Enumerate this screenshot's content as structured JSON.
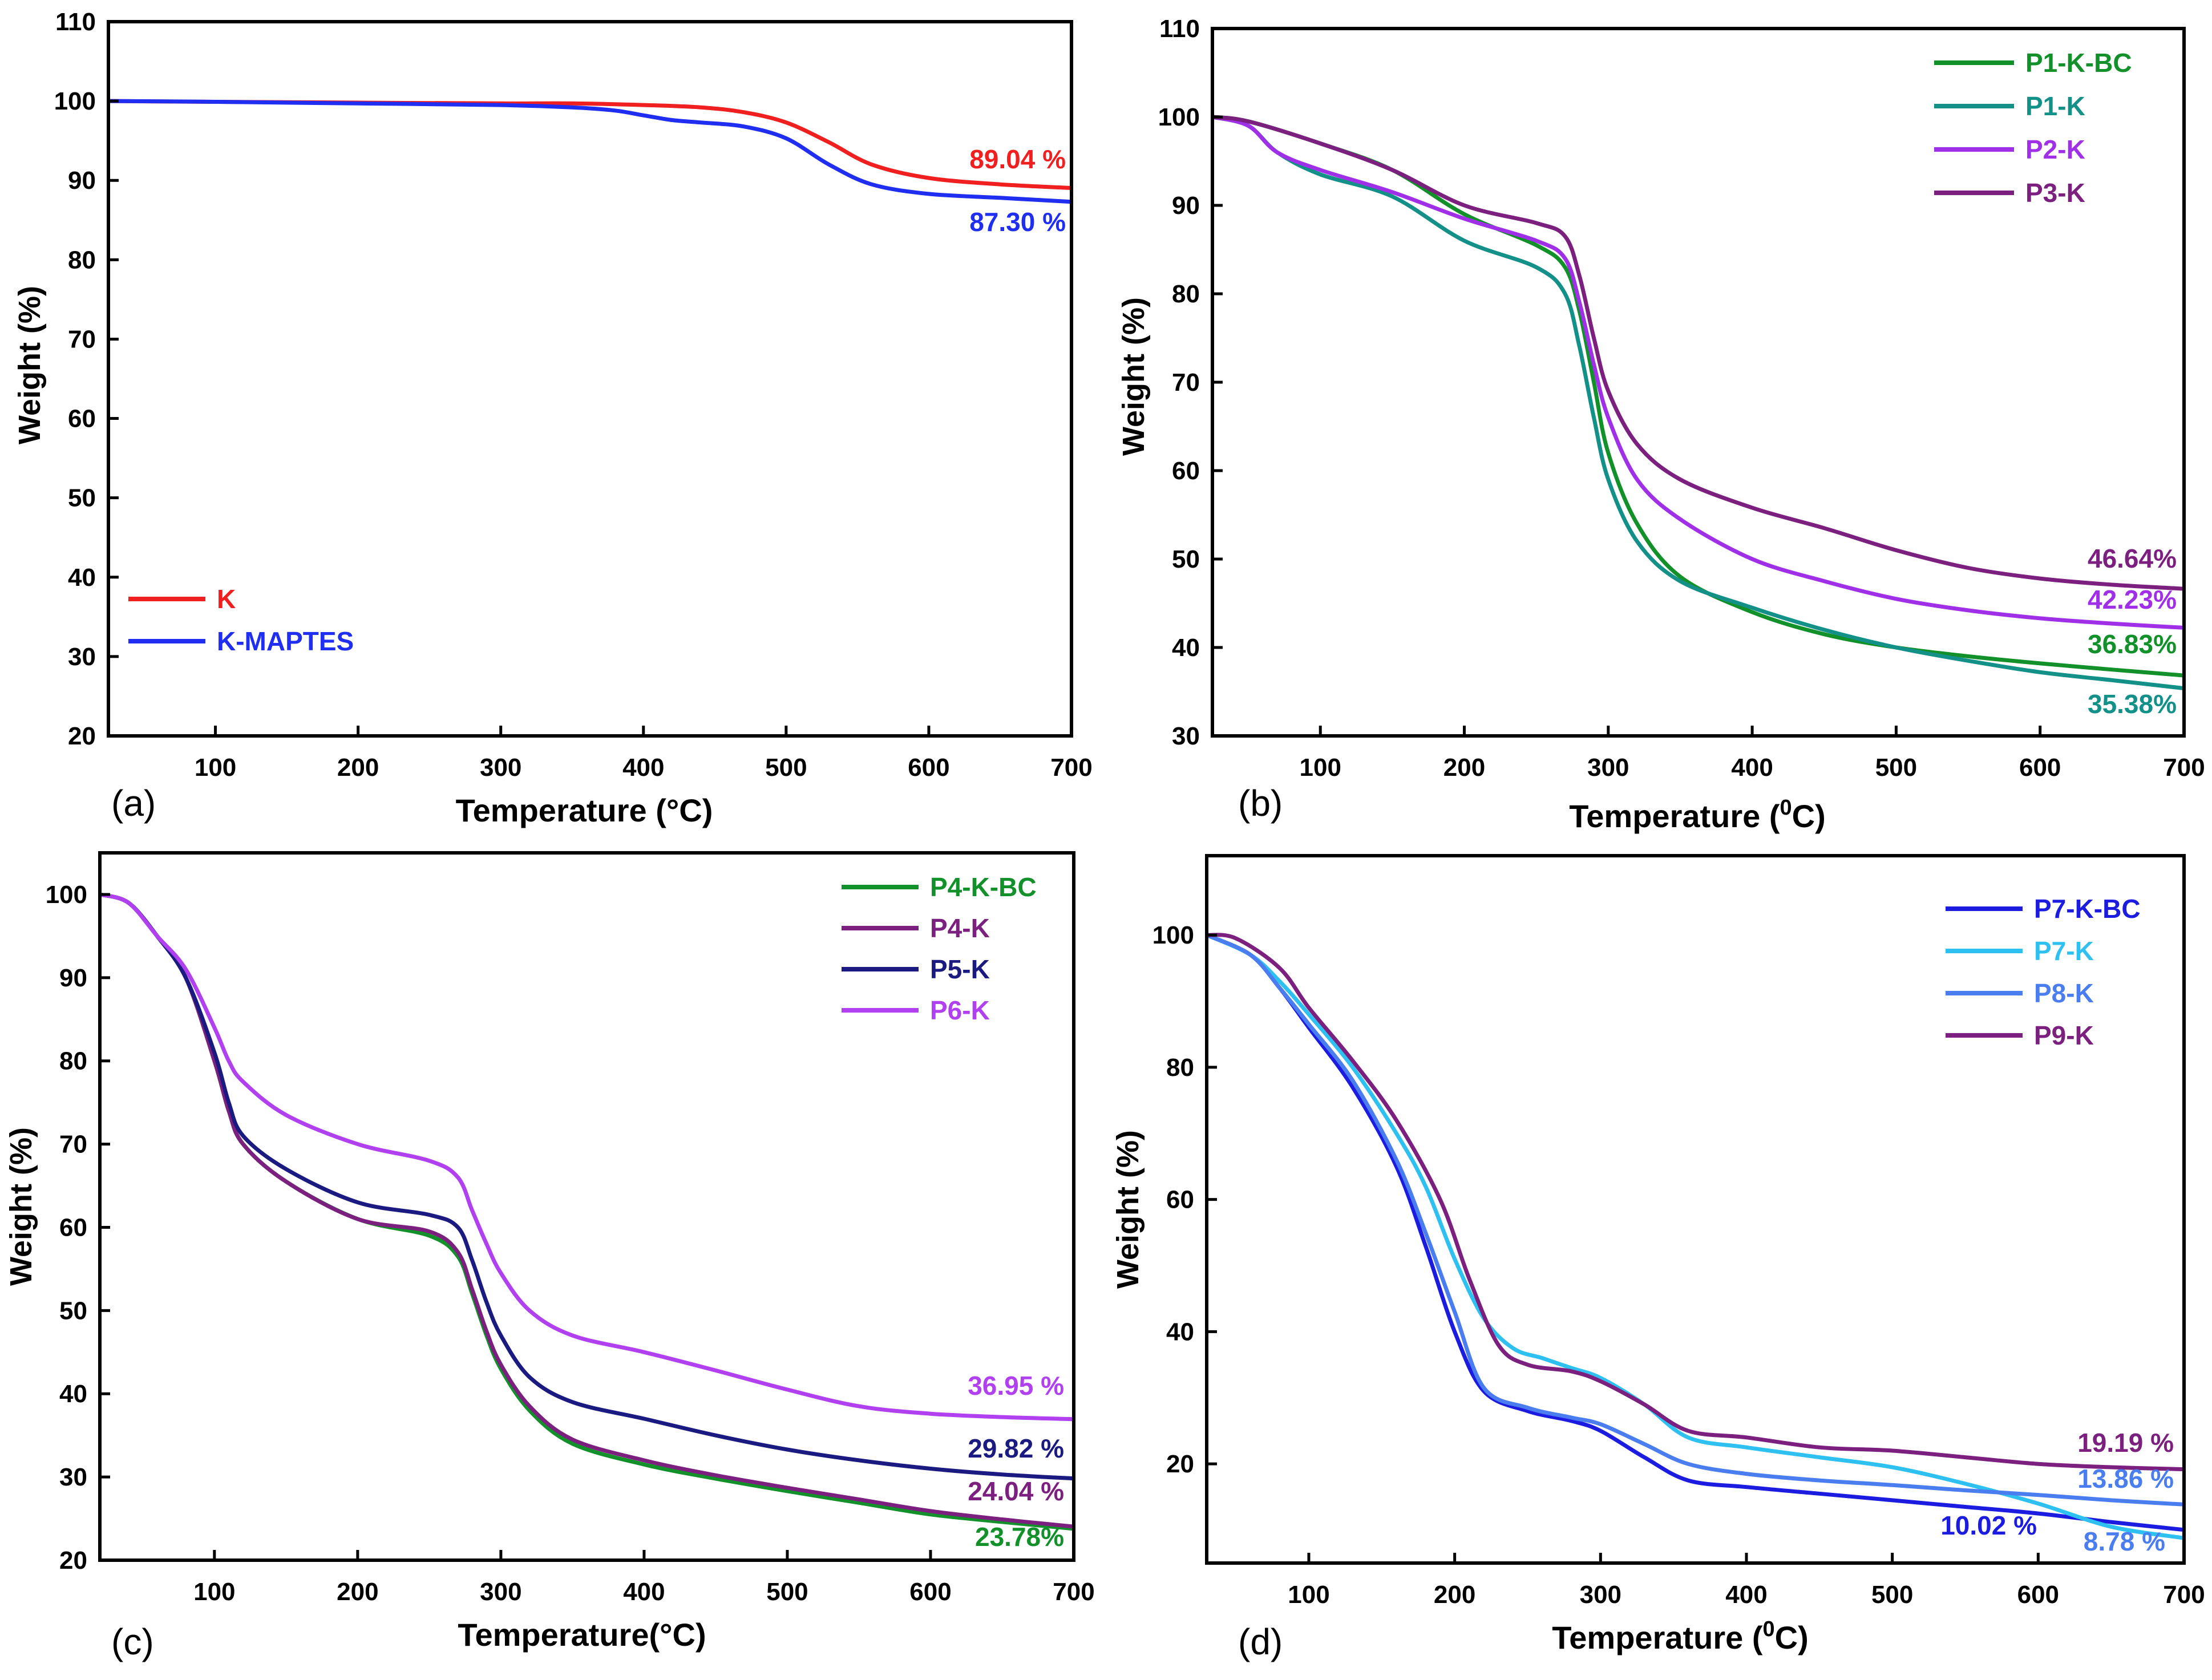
{
  "chart_data": [
    {
      "type": "line",
      "panel_label": "(a)",
      "xlabel": "Temperature (°C)",
      "ylabel": "Weight (%)",
      "xlim": [
        25,
        700
      ],
      "ylim": [
        20,
        110
      ],
      "xticks": [
        100,
        200,
        300,
        400,
        500,
        600,
        700
      ],
      "yticks": [
        20,
        30,
        40,
        50,
        60,
        70,
        80,
        90,
        100,
        110
      ],
      "legend_position": "lower-left",
      "series": [
        {
          "name": "K",
          "color": "#f02020",
          "x": [
            25,
            100,
            200,
            300,
            350,
            400,
            440,
            470,
            500,
            530,
            560,
            600,
            650,
            700
          ],
          "y": [
            100,
            99.9,
            99.8,
            99.7,
            99.7,
            99.5,
            99.2,
            98.6,
            97.3,
            94.8,
            92.0,
            90.3,
            89.5,
            89.04
          ]
        },
        {
          "name": "K-MAPTES",
          "color": "#1f2ef0",
          "x": [
            25,
            100,
            200,
            300,
            350,
            380,
            400,
            420,
            440,
            470,
            500,
            530,
            560,
            600,
            650,
            700
          ],
          "y": [
            100,
            99.9,
            99.7,
            99.5,
            99.2,
            98.8,
            98.2,
            97.6,
            97.3,
            96.8,
            95.3,
            92.0,
            89.5,
            88.3,
            87.8,
            87.3
          ]
        }
      ],
      "end_labels": [
        {
          "series": "K",
          "text": "89.04 %",
          "color": "#f02020"
        },
        {
          "series": "K-MAPTES",
          "text": "87.30 %",
          "color": "#1f2ef0"
        }
      ]
    },
    {
      "type": "line",
      "panel_label": "(b)",
      "xlabel": "Temperature (",
      "xlabel_sup": "0",
      "xlabel_suffix": "C)",
      "ylabel": "Weight (%)",
      "xlim": [
        25,
        700
      ],
      "ylim": [
        30,
        110
      ],
      "xticks": [
        100,
        200,
        300,
        400,
        500,
        600,
        700
      ],
      "yticks": [
        30,
        40,
        50,
        60,
        70,
        80,
        90,
        100,
        110
      ],
      "legend_position": "top-right",
      "series": [
        {
          "name": "P1-K-BC",
          "color": "#12902a",
          "x": [
            25,
            50,
            100,
            150,
            200,
            250,
            270,
            280,
            290,
            300,
            320,
            350,
            400,
            450,
            500,
            550,
            600,
            650,
            700
          ],
          "y": [
            100,
            99.5,
            97,
            94,
            89,
            85.5,
            83,
            78,
            70,
            62,
            54,
            48,
            44,
            41.5,
            40,
            39,
            38.2,
            37.5,
            36.83
          ]
        },
        {
          "name": "P1-K",
          "color": "#139088",
          "x": [
            25,
            50,
            70,
            100,
            150,
            200,
            250,
            270,
            280,
            290,
            300,
            320,
            350,
            400,
            450,
            500,
            550,
            600,
            650,
            700
          ],
          "y": [
            100,
            99,
            96,
            93.5,
            91,
            86,
            83,
            80,
            74,
            66,
            59,
            52,
            47.5,
            44.5,
            42,
            40,
            38.5,
            37.2,
            36.3,
            35.38
          ]
        },
        {
          "name": "P2-K",
          "color": "#a030e8",
          "x": [
            25,
            50,
            70,
            100,
            150,
            200,
            250,
            270,
            280,
            290,
            300,
            320,
            350,
            400,
            450,
            500,
            550,
            600,
            650,
            700
          ],
          "y": [
            100,
            99,
            96,
            94,
            91.5,
            88.5,
            86,
            84,
            79,
            72,
            66,
            59,
            54.5,
            50,
            47.5,
            45.5,
            44.2,
            43.3,
            42.7,
            42.23
          ]
        },
        {
          "name": "P3-K",
          "color": "#7c2080",
          "x": [
            25,
            50,
            100,
            150,
            200,
            250,
            270,
            280,
            290,
            300,
            320,
            350,
            400,
            450,
            500,
            550,
            600,
            650,
            700
          ],
          "y": [
            100,
            99.5,
            97,
            94,
            90,
            88,
            86.5,
            82,
            75,
            69,
            63,
            59,
            55.8,
            53.5,
            51,
            49,
            47.8,
            47.1,
            46.64
          ]
        }
      ],
      "end_labels": [
        {
          "series": "P3-K",
          "text": "46.64%",
          "color": "#7c2080"
        },
        {
          "series": "P2-K",
          "text": "42.23%",
          "color": "#a030e8"
        },
        {
          "series": "P1-K-BC",
          "text": "36.83%",
          "color": "#12902a"
        },
        {
          "series": "P1-K",
          "text": "35.38%",
          "color": "#139088"
        }
      ]
    },
    {
      "type": "line",
      "panel_label": "(c)",
      "xlabel": "Temperature(°C)",
      "ylabel": "Weight (%)",
      "xlim": [
        20,
        700
      ],
      "ylim": [
        20,
        105
      ],
      "xticks": [
        100,
        200,
        300,
        400,
        500,
        600,
        700
      ],
      "yticks": [
        20,
        30,
        40,
        50,
        60,
        70,
        80,
        90,
        100
      ],
      "legend_position": "top-right",
      "series": [
        {
          "name": "P4-K-BC",
          "color": "#12902a",
          "x": [
            20,
            40,
            60,
            80,
            100,
            110,
            120,
            150,
            200,
            250,
            270,
            280,
            290,
            300,
            320,
            350,
            400,
            450,
            500,
            550,
            600,
            650,
            700
          ],
          "y": [
            100,
            99,
            95,
            90,
            80,
            74,
            70,
            65.5,
            61,
            59,
            56.5,
            52,
            47,
            43,
            38,
            34,
            31.5,
            29.8,
            28.3,
            26.9,
            25.5,
            24.6,
            23.78
          ]
        },
        {
          "name": "P4-K",
          "color": "#7c2080",
          "x": [
            20,
            40,
            60,
            80,
            100,
            110,
            120,
            150,
            200,
            250,
            270,
            280,
            290,
            300,
            320,
            350,
            400,
            450,
            500,
            550,
            600,
            650,
            700
          ],
          "y": [
            100,
            99,
            95,
            90,
            80,
            74,
            70,
            65.5,
            61,
            59.5,
            57,
            52.5,
            47.5,
            43.5,
            38.5,
            34.5,
            32,
            30.2,
            28.7,
            27.3,
            25.9,
            24.9,
            24.04
          ]
        },
        {
          "name": "P5-K",
          "color": "#1a1a80",
          "x": [
            20,
            40,
            60,
            80,
            100,
            110,
            120,
            150,
            200,
            250,
            270,
            280,
            290,
            300,
            320,
            350,
            400,
            450,
            500,
            550,
            600,
            650,
            700
          ],
          "y": [
            100,
            99,
            95,
            90,
            81,
            75,
            71,
            67,
            63,
            61.5,
            60,
            56,
            51,
            47,
            42,
            39,
            37,
            35,
            33.3,
            32,
            31,
            30.3,
            29.82
          ]
        },
        {
          "name": "P6-K",
          "color": "#b040f0",
          "x": [
            20,
            40,
            60,
            80,
            100,
            110,
            120,
            150,
            200,
            250,
            270,
            280,
            290,
            300,
            320,
            350,
            400,
            450,
            500,
            550,
            600,
            650,
            700
          ],
          "y": [
            100,
            99,
            95,
            91,
            84,
            80,
            77.5,
            73.5,
            70,
            68,
            66,
            62,
            58,
            54.5,
            50,
            47,
            45,
            42.8,
            40.5,
            38.5,
            37.6,
            37.2,
            36.95
          ]
        }
      ],
      "end_labels": [
        {
          "series": "P6-K",
          "text": "36.95 %",
          "color": "#b040f0"
        },
        {
          "series": "P5-K",
          "text": "29.82 %",
          "color": "#1a1a80"
        },
        {
          "series": "P4-K",
          "text": "24.04 %",
          "color": "#7c2080"
        },
        {
          "series": "P4-K-BC",
          "text": "23.78%",
          "color": "#12902a"
        }
      ]
    },
    {
      "type": "line",
      "panel_label": "(d)",
      "xlabel": "Temperature (",
      "xlabel_sup": "0",
      "xlabel_suffix": "C)",
      "ylabel": "Weight (%)",
      "xlim": [
        30,
        700
      ],
      "ylim": [
        5,
        112
      ],
      "xticks": [
        100,
        200,
        300,
        400,
        500,
        600,
        700
      ],
      "yticks": [
        20,
        40,
        60,
        80,
        100
      ],
      "legend_position": "top-right",
      "series": [
        {
          "name": "P7-K-BC",
          "color": "#1c1ce0",
          "x": [
            30,
            60,
            80,
            100,
            130,
            160,
            180,
            200,
            220,
            250,
            280,
            300,
            330,
            360,
            400,
            450,
            500,
            550,
            600,
            650,
            700
          ],
          "y": [
            100,
            97,
            92,
            86,
            77,
            65,
            53,
            40,
            31,
            28,
            26.5,
            25,
            21,
            17.5,
            16.5,
            15.5,
            14.5,
            13.5,
            12.5,
            11.2,
            10.02
          ]
        },
        {
          "name": "P7-K",
          "color": "#2ec0f0",
          "x": [
            30,
            60,
            80,
            100,
            130,
            160,
            180,
            200,
            220,
            240,
            260,
            280,
            300,
            330,
            360,
            400,
            450,
            500,
            550,
            600,
            650,
            700
          ],
          "y": [
            100,
            97,
            93,
            88,
            80,
            70,
            62,
            51,
            42,
            37.5,
            36,
            34.5,
            33,
            29,
            24,
            22.5,
            21,
            19.5,
            17,
            14,
            10.5,
            8.78
          ]
        },
        {
          "name": "P8-K",
          "color": "#4a7ef0",
          "x": [
            30,
            60,
            80,
            100,
            130,
            160,
            180,
            200,
            220,
            250,
            280,
            300,
            330,
            360,
            400,
            450,
            500,
            550,
            600,
            650,
            700
          ],
          "y": [
            100,
            97,
            92,
            86.5,
            78,
            66,
            55,
            43,
            31.5,
            28.5,
            27,
            26,
            23,
            20,
            18.5,
            17.5,
            16.8,
            16,
            15.3,
            14.5,
            13.86
          ]
        },
        {
          "name": "P9-K",
          "color": "#7c2080",
          "x": [
            30,
            50,
            80,
            100,
            130,
            160,
            190,
            210,
            230,
            250,
            280,
            300,
            330,
            360,
            400,
            450,
            500,
            550,
            600,
            650,
            700
          ],
          "y": [
            100,
            99.5,
            95,
            89,
            81,
            72,
            60,
            48,
            38,
            35,
            34,
            32.5,
            29,
            25,
            24,
            22.5,
            22,
            21,
            20,
            19.5,
            19.19
          ]
        }
      ],
      "end_labels": [
        {
          "series": "P9-K",
          "text": "19.19 %",
          "color": "#7c2080"
        },
        {
          "series": "P8-K",
          "text": "13.86 %",
          "color": "#4a7ef0"
        },
        {
          "series": "P7-K-BC",
          "text": "10.02 %",
          "color": "#1c1ce0"
        },
        {
          "series": "P7-K",
          "text": "8.78 %",
          "color": "#4a7ef0"
        }
      ]
    }
  ]
}
